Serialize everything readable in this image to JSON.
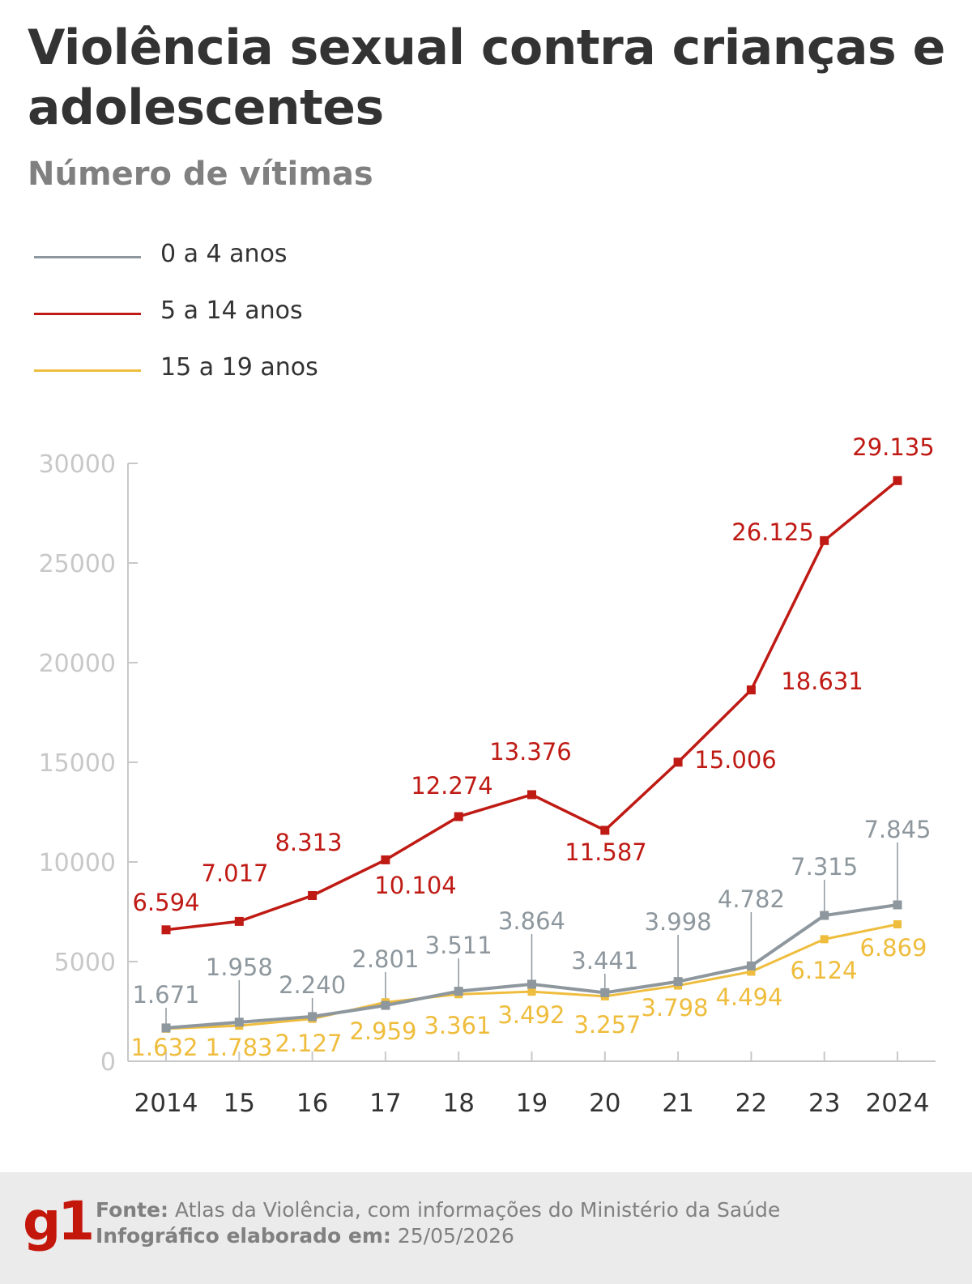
{
  "header": {
    "title": "Violência sexual contra crianças e adolescentes",
    "subtitle": "Número de vítimas"
  },
  "colors": {
    "series_0_4": "#8d979d",
    "series_5_14": "#bf1a14",
    "series_15_19": "#efbd3d",
    "axis": "#c8c8c8",
    "tick_text": "#c8c8c8",
    "category_text": "#333333"
  },
  "chart_data": {
    "type": "line",
    "categories": [
      "2014",
      "15",
      "16",
      "17",
      "18",
      "19",
      "20",
      "21",
      "22",
      "23",
      "2024"
    ],
    "ylim": [
      0,
      30000
    ],
    "yticks": [
      "0",
      "5000",
      "10000",
      "15000",
      "20000",
      "25000",
      "30000"
    ],
    "legend_position": "top-left",
    "grid": false,
    "series": [
      {
        "name": "0 a 4 anos",
        "color": "#8d979d",
        "values": [
          1671,
          1958,
          2240,
          2801,
          3511,
          3864,
          3441,
          3998,
          4782,
          7315,
          7845
        ],
        "labels": [
          "1.671",
          "1.958",
          "2.240",
          "2.801",
          "3.511",
          "3.864",
          "3.441",
          "3.998",
          "4.782",
          "7.315",
          "7.845"
        ]
      },
      {
        "name": "5 a 14 anos",
        "color": "#bf1a14",
        "values": [
          6594,
          7017,
          8313,
          10104,
          12274,
          13376,
          11587,
          15006,
          18631,
          26125,
          29135
        ],
        "labels": [
          "6.594",
          "7.017",
          "8.313",
          "10.104",
          "12.274",
          "13.376",
          "11.587",
          "15.006",
          "18.631",
          "26.125",
          "29.135"
        ]
      },
      {
        "name": "15 a 19 anos",
        "color": "#efbd3d",
        "values": [
          1632,
          1783,
          2127,
          2959,
          3361,
          3492,
          3257,
          3798,
          4494,
          6124,
          6869
        ],
        "labels": [
          "1.632",
          "1.783",
          "2.127",
          "2.959",
          "3.361",
          "3.492",
          "3.257",
          "3.798",
          "4.494",
          "6.124",
          "6.869"
        ]
      }
    ]
  },
  "footer": {
    "logo": "g1",
    "source_label": "Fonte:",
    "source_text": " Atlas da Violência, com informações do Ministério da Saúde",
    "date_label": "Infográfico elaborado em:",
    "date_text": " 25/05/2026"
  }
}
